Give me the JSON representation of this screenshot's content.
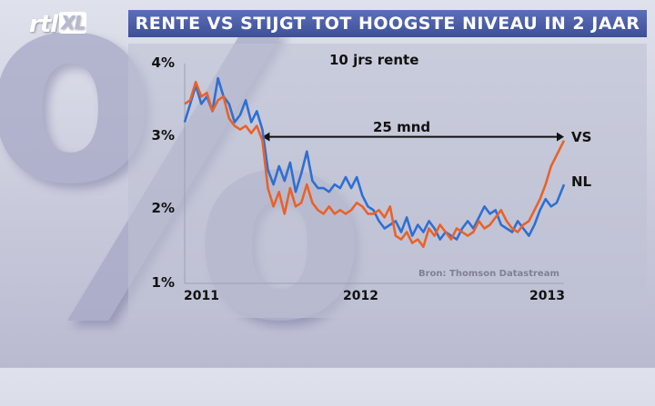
{
  "brand": {
    "logo_text": "rtl",
    "logo_suffix": "XL"
  },
  "headline": "RENTE VS STIJGT TOT HOOGSTE NIVEAU IN 2 JAAR",
  "background_glyph": "%",
  "chart_data": {
    "type": "line",
    "title": "10 jrs rente",
    "xlabel": "",
    "ylabel": "",
    "x_ticks": [
      "2011",
      "2012",
      "2013"
    ],
    "y_ticks": [
      "4%",
      "3%",
      "2%",
      "1%"
    ],
    "xlim": [
      2011.0,
      2013.05
    ],
    "ylim": [
      1,
      4
    ],
    "grid": false,
    "colors": {
      "VS": "#e8622a",
      "NL": "#2f6fd1"
    },
    "annotation": {
      "text": "25 mnd",
      "from": 2011.42,
      "to": 2013.05,
      "y": 3.0
    },
    "source": "Bron: Thomson Datastream",
    "series": [
      {
        "name": "VS",
        "x": [
          2011.0,
          2011.03,
          2011.06,
          2011.09,
          2011.12,
          2011.15,
          2011.18,
          2011.21,
          2011.24,
          2011.27,
          2011.3,
          2011.33,
          2011.36,
          2011.39,
          2011.42,
          2011.45,
          2011.48,
          2011.51,
          2011.54,
          2011.57,
          2011.6,
          2011.63,
          2011.66,
          2011.69,
          2011.72,
          2011.75,
          2011.78,
          2011.81,
          2011.84,
          2011.87,
          2011.9,
          2011.93,
          2011.96,
          2011.99,
          2012.02,
          2012.05,
          2012.08,
          2012.11,
          2012.14,
          2012.17,
          2012.2,
          2012.23,
          2012.26,
          2012.29,
          2012.32,
          2012.35,
          2012.38,
          2012.41,
          2012.44,
          2012.47,
          2012.5,
          2012.53,
          2012.56,
          2012.59,
          2012.62,
          2012.65,
          2012.68,
          2012.71,
          2012.74,
          2012.77,
          2012.8,
          2012.83,
          2012.86,
          2012.89,
          2012.92,
          2012.95,
          2012.98,
          2013.01,
          2013.05
        ],
        "y": [
          3.45,
          3.5,
          3.75,
          3.55,
          3.6,
          3.35,
          3.5,
          3.55,
          3.25,
          3.15,
          3.1,
          3.15,
          3.05,
          3.15,
          2.95,
          2.3,
          2.05,
          2.25,
          1.95,
          2.3,
          2.05,
          2.1,
          2.35,
          2.1,
          2.0,
          1.95,
          2.05,
          1.95,
          2.0,
          1.95,
          2.0,
          2.1,
          2.05,
          1.95,
          1.95,
          2.0,
          1.9,
          2.05,
          1.65,
          1.6,
          1.7,
          1.55,
          1.6,
          1.5,
          1.75,
          1.65,
          1.8,
          1.7,
          1.6,
          1.75,
          1.7,
          1.65,
          1.7,
          1.85,
          1.75,
          1.8,
          1.9,
          2.0,
          1.85,
          1.75,
          1.7,
          1.8,
          1.85,
          2.0,
          2.15,
          2.35,
          2.6,
          2.75,
          2.95
        ]
      },
      {
        "name": "NL",
        "x": [
          2011.0,
          2011.03,
          2011.06,
          2011.09,
          2011.12,
          2011.15,
          2011.18,
          2011.21,
          2011.24,
          2011.27,
          2011.3,
          2011.33,
          2011.36,
          2011.39,
          2011.42,
          2011.45,
          2011.48,
          2011.51,
          2011.54,
          2011.57,
          2011.6,
          2011.63,
          2011.66,
          2011.69,
          2011.72,
          2011.75,
          2011.78,
          2011.81,
          2011.84,
          2011.87,
          2011.9,
          2011.93,
          2011.96,
          2011.99,
          2012.02,
          2012.05,
          2012.08,
          2012.11,
          2012.14,
          2012.17,
          2012.2,
          2012.23,
          2012.26,
          2012.29,
          2012.32,
          2012.35,
          2012.38,
          2012.41,
          2012.44,
          2012.47,
          2012.5,
          2012.53,
          2012.56,
          2012.59,
          2012.62,
          2012.65,
          2012.68,
          2012.71,
          2012.74,
          2012.77,
          2012.8,
          2012.83,
          2012.86,
          2012.89,
          2012.92,
          2012.95,
          2012.98,
          2013.01,
          2013.05
        ],
        "y": [
          3.2,
          3.45,
          3.7,
          3.45,
          3.55,
          3.35,
          3.8,
          3.55,
          3.45,
          3.2,
          3.3,
          3.5,
          3.2,
          3.35,
          3.1,
          2.55,
          2.35,
          2.6,
          2.4,
          2.65,
          2.25,
          2.5,
          2.8,
          2.4,
          2.3,
          2.3,
          2.25,
          2.35,
          2.3,
          2.45,
          2.3,
          2.45,
          2.2,
          2.05,
          2.0,
          1.85,
          1.75,
          1.8,
          1.85,
          1.7,
          1.9,
          1.65,
          1.8,
          1.7,
          1.85,
          1.75,
          1.6,
          1.7,
          1.65,
          1.6,
          1.75,
          1.85,
          1.75,
          1.9,
          2.05,
          1.95,
          2.0,
          1.8,
          1.75,
          1.7,
          1.85,
          1.75,
          1.65,
          1.8,
          2.0,
          2.15,
          2.05,
          2.1,
          2.35
        ]
      }
    ]
  }
}
